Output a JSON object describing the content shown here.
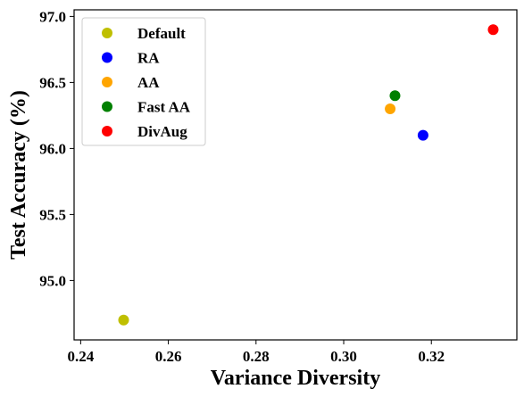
{
  "chart_data": {
    "type": "scatter",
    "xlabel": "Variance Diversity",
    "ylabel": "Test Accuracy (%)",
    "xlim": [
      0.2385,
      0.3395
    ],
    "ylim": [
      94.55,
      97.05
    ],
    "xticks": [
      0.24,
      0.26,
      0.28,
      0.3,
      0.32
    ],
    "yticks": [
      95.0,
      95.5,
      96.0,
      96.5,
      97.0
    ],
    "grid": false,
    "legend_position": "top-left",
    "series": [
      {
        "name": "Default",
        "color": "#bfbf00",
        "points": [
          {
            "x": 0.2498,
            "y": 94.7
          }
        ]
      },
      {
        "name": "RA",
        "color": "#0000ff",
        "points": [
          {
            "x": 0.3181,
            "y": 96.1
          }
        ]
      },
      {
        "name": "AA",
        "color": "#ffa500",
        "points": [
          {
            "x": 0.3106,
            "y": 96.3
          }
        ]
      },
      {
        "name": "Fast AA",
        "color": "#008000",
        "points": [
          {
            "x": 0.3117,
            "y": 96.4
          }
        ]
      },
      {
        "name": "DivAug",
        "color": "#ff0000",
        "points": [
          {
            "x": 0.3341,
            "y": 96.9
          }
        ]
      }
    ]
  }
}
